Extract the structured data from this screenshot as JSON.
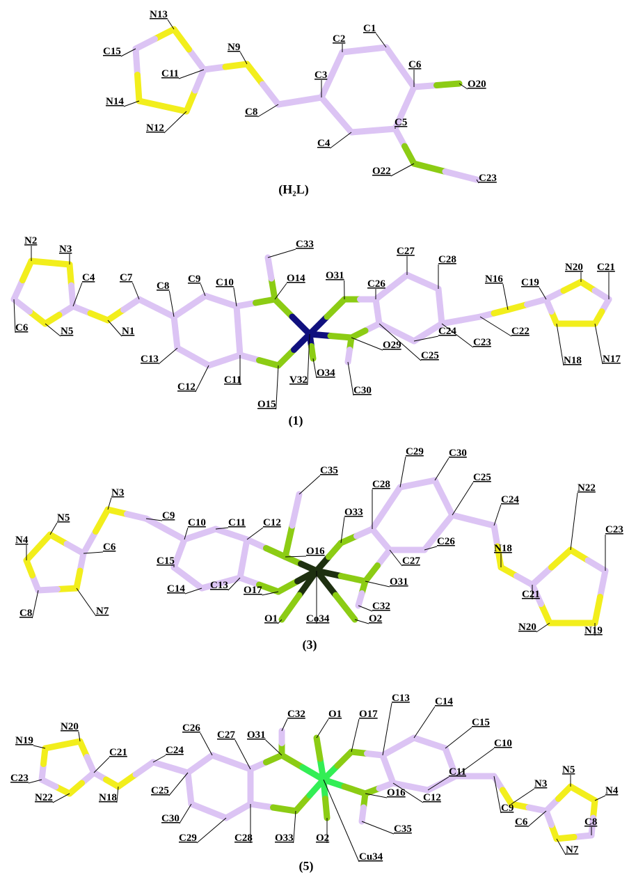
{
  "panels": [
    {
      "caption": "(H₂L)",
      "atoms": [
        "N13",
        "C15",
        "C11",
        "N14",
        "N12",
        "N9",
        "C8",
        "C3",
        "C2",
        "C1",
        "C6",
        "O20",
        "C5",
        "C4",
        "O22",
        "C23"
      ]
    },
    {
      "caption": "(1)",
      "atoms": [
        "N2",
        "N3",
        "C4",
        "C7",
        "C8",
        "C9",
        "C10",
        "C33",
        "O14",
        "O31",
        "C26",
        "C27",
        "C28",
        "N16",
        "C19",
        "N20",
        "C21",
        "C6",
        "N5",
        "N1",
        "C13",
        "C12",
        "C11",
        "O15",
        "V32",
        "O34",
        "C30",
        "C25",
        "C24",
        "O29",
        "C23",
        "C22",
        "N18",
        "N17"
      ]
    },
    {
      "caption": "(3)",
      "atoms": [
        "C35",
        "C28",
        "C29",
        "C30",
        "C25",
        "C24",
        "N5",
        "N3",
        "C9",
        "C10",
        "C11",
        "C12",
        "O33",
        "N22",
        "C23",
        "N4",
        "C6",
        "C15",
        "O16",
        "C26",
        "N18",
        "C27",
        "O31",
        "C21",
        "C14",
        "C13",
        "O17",
        "C32",
        "C8",
        "N7",
        "N20",
        "N19",
        "O1",
        "Co34",
        "O2"
      ]
    },
    {
      "caption": "(5)",
      "atoms": [
        "C13",
        "C14",
        "O1",
        "O17",
        "C32",
        "C15",
        "N20",
        "C26",
        "C27",
        "O31",
        "C10",
        "C21",
        "C24",
        "N19",
        "N5",
        "C11",
        "C23",
        "N3",
        "N4",
        "C25",
        "N22",
        "N18",
        "O16",
        "C12",
        "C9",
        "C6",
        "C8",
        "C30",
        "C29",
        "C28",
        "O33",
        "O2",
        "C35",
        "Cu34",
        "N7"
      ]
    }
  ]
}
